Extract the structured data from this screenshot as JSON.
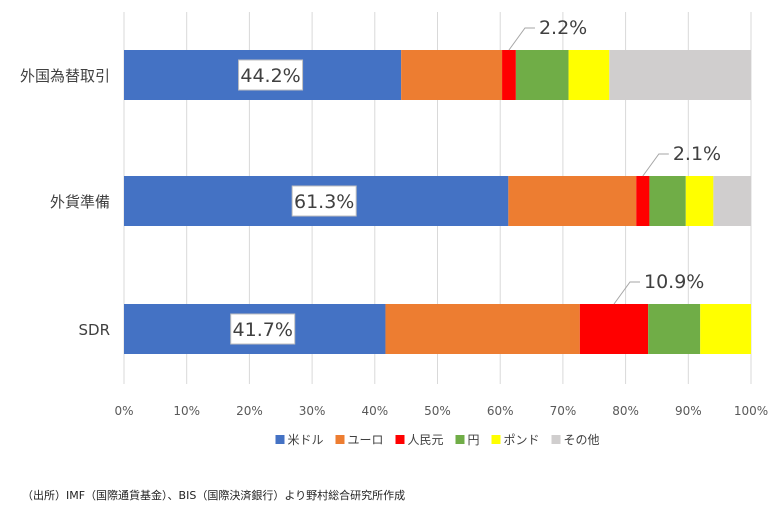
{
  "chart_data": {
    "type": "bar",
    "orientation": "horizontal",
    "stacked": true,
    "percent_scale": true,
    "title": "",
    "xlabel": "",
    "ylabel": "",
    "xlim": [
      0,
      100
    ],
    "x_ticks": [
      "0%",
      "10%",
      "20%",
      "30%",
      "40%",
      "50%",
      "60%",
      "70%",
      "80%",
      "90%",
      "100%"
    ],
    "grid": true,
    "legend_position": "bottom",
    "categories": [
      "外国為替取引",
      "外貨準備",
      "SDR"
    ],
    "series": [
      {
        "name": "米ドル",
        "color": "#4472C4",
        "values": [
          44.2,
          61.3,
          41.7
        ]
      },
      {
        "name": "ユーロ",
        "color": "#ED7D31",
        "values": [
          16.1,
          20.4,
          31.0
        ]
      },
      {
        "name": "人民元",
        "color": "#FF0000",
        "values": [
          2.2,
          2.1,
          10.9
        ]
      },
      {
        "name": "円",
        "color": "#70AD47",
        "values": [
          8.4,
          5.8,
          8.3
        ]
      },
      {
        "name": "ポンド",
        "color": "#FFFF00",
        "values": [
          6.5,
          4.4,
          8.1
        ]
      },
      {
        "name": "その他",
        "color": "#D0CECE",
        "values": [
          22.6,
          6.0,
          0.0
        ]
      }
    ],
    "data_labels": [
      {
        "category": "外国為替取引",
        "series": "米ドル",
        "text": "44.2%"
      },
      {
        "category": "外貨準備",
        "series": "米ドル",
        "text": "61.3%"
      },
      {
        "category": "SDR",
        "series": "米ドル",
        "text": "41.7%"
      },
      {
        "category": "外国為替取引",
        "series": "人民元",
        "text": "2.2%"
      },
      {
        "category": "外貨準備",
        "series": "人民元",
        "text": "2.1%"
      },
      {
        "category": "SDR",
        "series": "人民元",
        "text": "10.9%"
      }
    ]
  },
  "source_note": "（出所）IMF（国際通貨基金）、BIS（国際決済銀行）より野村総合研究所作成"
}
